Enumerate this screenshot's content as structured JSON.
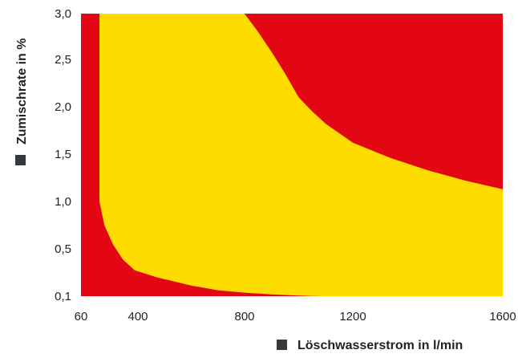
{
  "chart_data": {
    "type": "area",
    "xlabel": "Löschwasserstrom in l/min",
    "ylabel": "Zumischrate in %",
    "x_ticks": [
      "60",
      "400",
      "800",
      "1200",
      "1600"
    ],
    "x_tick_values": [
      60,
      400,
      800,
      1200,
      1600
    ],
    "y_ticks": [
      "0,1",
      "0,5",
      "1,0",
      "1,5",
      "2,0",
      "2,5",
      "3,0"
    ],
    "y_tick_values": [
      0.1,
      0.5,
      1.0,
      1.5,
      2.0,
      2.5,
      3.0
    ],
    "xlim": [
      60,
      1600
    ],
    "ylim": [
      0.1,
      3.0
    ],
    "grid": false,
    "regions": [
      {
        "color": "#e30613",
        "role": "background"
      },
      {
        "color": "#ffdc00",
        "role": "operating-range",
        "points": [
          {
            "x": 170,
            "y": 3.0
          },
          {
            "x": 170,
            "y": 1.0
          },
          {
            "x": 200,
            "y": 0.75
          },
          {
            "x": 250,
            "y": 0.55
          },
          {
            "x": 310,
            "y": 0.41
          },
          {
            "x": 380,
            "y": 0.32
          },
          {
            "x": 470,
            "y": 0.26
          },
          {
            "x": 600,
            "y": 0.19
          },
          {
            "x": 700,
            "y": 0.15
          },
          {
            "x": 800,
            "y": 0.13
          },
          {
            "x": 900,
            "y": 0.115
          },
          {
            "x": 1000,
            "y": 0.105
          },
          {
            "x": 1080,
            "y": 0.1
          },
          {
            "x": 1600,
            "y": 0.1
          },
          {
            "x": 1600,
            "y": 1.13
          },
          {
            "x": 1500,
            "y": 1.22
          },
          {
            "x": 1400,
            "y": 1.33
          },
          {
            "x": 1300,
            "y": 1.46
          },
          {
            "x": 1200,
            "y": 1.62
          },
          {
            "x": 1100,
            "y": 1.82
          },
          {
            "x": 1050,
            "y": 1.95
          },
          {
            "x": 1000,
            "y": 2.1
          },
          {
            "x": 950,
            "y": 2.35
          },
          {
            "x": 900,
            "y": 2.58
          },
          {
            "x": 850,
            "y": 2.8
          },
          {
            "x": 800,
            "y": 3.0
          }
        ]
      }
    ],
    "legend_marker_color": "#333b3f"
  }
}
